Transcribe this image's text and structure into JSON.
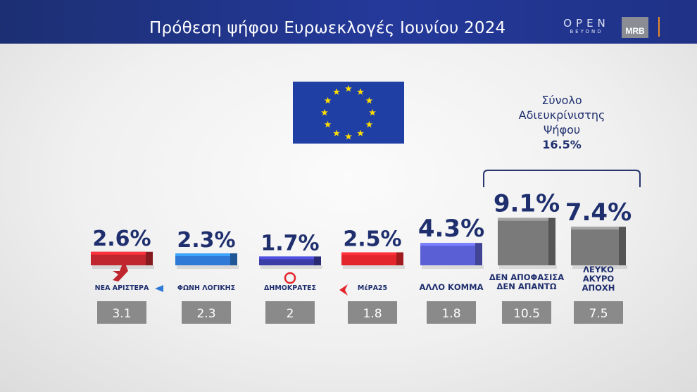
{
  "header": {
    "title": "Πρόθεση ψήφου Ευρωεκλογές Ιουνίου 2024",
    "logo_open": "OPEN",
    "logo_open_sub": "BEYOND",
    "logo_mrb": "MRB"
  },
  "bracket": {
    "line1": "Σύνολο",
    "line2": "Αδιευκρίνιστης",
    "line3": "Ψήφου",
    "total": "16.5%"
  },
  "colors": {
    "header_bg": "#24399a",
    "label_text": "#1f2f6e",
    "prev_box": "#8a8a8a"
  },
  "chart_data": {
    "type": "bar",
    "title": "Πρόθεση ψήφου Ευρωεκλογές Ιουνίου 2024",
    "categories": [
      "ΝΕΑ ΑΡΙΣΤΕΡΑ",
      "ΦΩΝΗ ΛΟΓΙΚΗΣ",
      "ΔΗΜΟΚΡΑΤΕΣ",
      "ΜέΡΑ25",
      "ΑΛΛΟ ΚΟΜΜΑ",
      "ΔΕΝ ΑΠΟΦΑΣΙΣΑ ΔΕΝ ΑΠΑΝΤΩ",
      "ΛΕΥΚΟ ΑΚΥΡΟ ΑΠΟΧΗ"
    ],
    "values": [
      2.6,
      2.3,
      1.7,
      2.5,
      4.3,
      9.1,
      7.4
    ],
    "value_labels": [
      "2.6%",
      "2.3%",
      "1.7%",
      "2.5%",
      "4.3%",
      "9.1%",
      "7.4%"
    ],
    "previous_values": [
      "3.1",
      "2.3",
      "2",
      "1.8",
      "1.8",
      "10.5",
      "7.5"
    ],
    "category_label_lines": [
      [
        "ΝΕΑ ΑΡΙΣΤΕΡΑ"
      ],
      [
        "ΦΩΝΗ ΛΟΓΙΚΗΣ"
      ],
      [
        "ΔΗΜΟΚΡΑΤΕΣ"
      ],
      [
        "ΜέΡΑ25"
      ],
      [
        "ΑΛΛΟ ΚΟΜΜΑ"
      ],
      [
        "ΔΕΝ ΑΠΟΦΑΣΙΣΑ",
        "ΔΕΝ ΑΠΑΝΤΩ"
      ],
      [
        "ΛΕΥΚΟ",
        "ΑΚΥΡΟ",
        "ΑΠΟΧΗ"
      ]
    ],
    "bar_colors": [
      "#c0262d",
      "#2e7ad6",
      "#3b3ca6",
      "#e3262b",
      "#5b5fd6",
      "#7a7a7a",
      "#7a7a7a"
    ],
    "ylim": [
      0,
      10
    ]
  }
}
